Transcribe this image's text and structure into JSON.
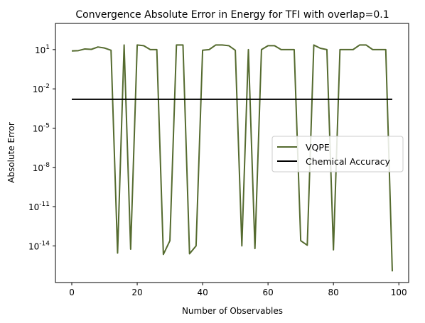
{
  "chart_data": {
    "type": "line",
    "title": "Convergence Absolute Error in Energy for TFI with overlap=0.1",
    "xlabel": "Number of Observables",
    "ylabel": "Absolute Error",
    "xlim": [
      -5,
      103
    ],
    "ylim_log10": [
      -16.8,
      3.0
    ],
    "yscale": "log",
    "x_ticks": [
      0,
      20,
      40,
      60,
      80,
      100
    ],
    "x_tick_labels": [
      "0",
      "20",
      "40",
      "60",
      "80",
      "100"
    ],
    "y_ticks_log10": [
      1,
      -2,
      -5,
      -8,
      -11,
      -14
    ],
    "y_tick_labels": [
      "10^1",
      "10^-2",
      "10^-5",
      "10^-8",
      "10^-11",
      "10^-14"
    ],
    "grid": false,
    "legend_position": "center-right",
    "series": [
      {
        "name": "VQPE",
        "color": "#556b2f",
        "x": [
          0,
          2,
          4,
          6,
          8,
          10,
          12,
          14,
          16,
          18,
          20,
          22,
          24,
          26,
          28,
          30,
          32,
          34,
          36,
          38,
          40,
          42,
          44,
          46,
          48,
          50,
          52,
          54,
          56,
          58,
          60,
          62,
          64,
          66,
          68,
          70,
          72,
          74,
          76,
          78,
          80,
          82,
          84,
          86,
          88,
          90,
          92,
          94,
          96,
          98
        ],
        "log10_values": [
          0.9,
          0.92,
          1.05,
          1.02,
          1.2,
          1.12,
          0.95,
          -14.55,
          1.35,
          -14.25,
          1.35,
          1.3,
          1.0,
          1.0,
          -14.65,
          -13.6,
          1.35,
          1.35,
          -14.6,
          -14.0,
          0.95,
          1.0,
          1.35,
          1.35,
          1.3,
          0.95,
          -14.0,
          1.0,
          -14.2,
          1.0,
          1.3,
          1.3,
          1.0,
          1.0,
          1.0,
          -13.6,
          -13.95,
          1.35,
          1.1,
          1.0,
          -14.3,
          1.0,
          1.0,
          1.0,
          1.35,
          1.35,
          1.0,
          1.0,
          1.0,
          -15.95
        ]
      },
      {
        "name": "Chemical Accuracy",
        "color": "#000000",
        "x": [
          0,
          98
        ],
        "log10_values": [
          -2.8,
          -2.8
        ]
      }
    ]
  }
}
